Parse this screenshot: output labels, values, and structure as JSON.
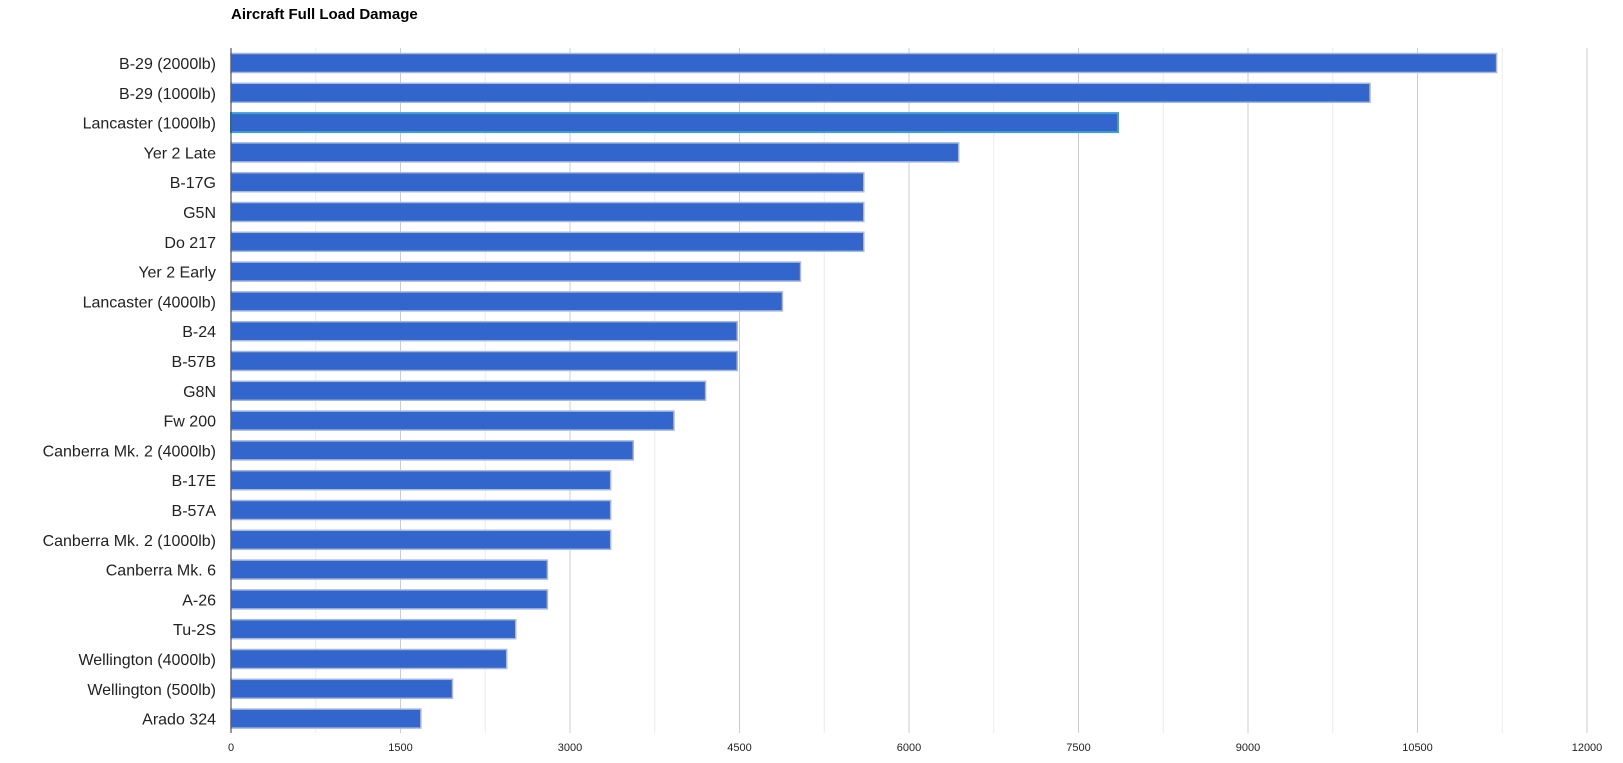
{
  "chart_data": {
    "type": "bar",
    "orientation": "horizontal",
    "title": "Aircraft Full Load Damage",
    "xlabel": "",
    "ylabel": "",
    "xlim": [
      0,
      12000
    ],
    "ticks": [
      "0",
      "1500",
      "3000",
      "4500",
      "6000",
      "7500",
      "9000",
      "10500",
      "12000"
    ],
    "grid": true,
    "legend": "none",
    "bar_color": "#3366cc",
    "bar_border_color": "#a6b8e0",
    "highlight_border_color": "#3c9fd6",
    "categories": [
      "B-29 (2000lb)",
      "B-29 (1000lb)",
      "Lancaster (1000lb)",
      "Yer 2 Late",
      "B-17G",
      "G5N",
      "Do 217",
      "Yer 2 Early",
      "Lancaster (4000lb)",
      "B-24",
      "B-57B",
      "G8N",
      "Fw 200",
      "Canberra Mk. 2 (4000lb)",
      "B-17E",
      "B-57A",
      "Canberra Mk. 2 (1000lb)",
      "Canberra Mk. 6",
      "A-26",
      "Tu-2S",
      "Wellington (4000lb)",
      "Wellington (500lb)",
      "Arado 324"
    ],
    "values": [
      11200,
      10080,
      7850,
      6440,
      5600,
      5600,
      5600,
      5040,
      4880,
      4480,
      4480,
      4200,
      3920,
      3560,
      3360,
      3360,
      3360,
      2800,
      2800,
      2520,
      2440,
      1960,
      1680
    ],
    "highlighted": "Lancaster (1000lb)"
  }
}
